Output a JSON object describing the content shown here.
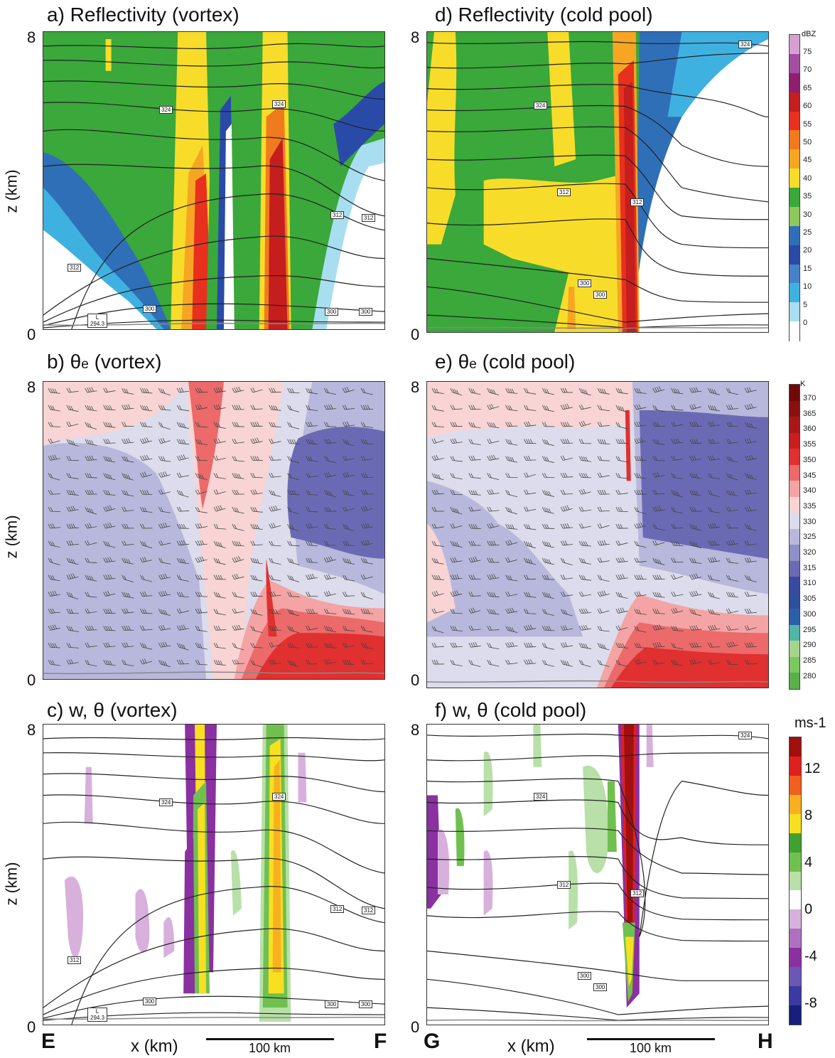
{
  "chart_data": [
    {
      "type": "heatmap",
      "panel": "a",
      "title": "a) Reflectivity (vortex)",
      "ylabel": "z (km)",
      "ylim": [
        0,
        8
      ],
      "y_tick_labels": [
        "0",
        "8"
      ],
      "contour_labels": [
        "324",
        "324",
        "312",
        "312",
        "312",
        "300",
        "300",
        "300"
      ],
      "low_label": [
        "L",
        "294.3"
      ]
    },
    {
      "type": "heatmap",
      "panel": "d",
      "title": "d) Reflectivity (cold pool)",
      "ylim": [
        0,
        8
      ],
      "y_tick_labels": [
        "0",
        "8"
      ],
      "contour_labels": [
        "324",
        "324",
        "312",
        "312",
        "300",
        "300"
      ],
      "colorbar": {
        "unit": "dBZ",
        "levels": [
          "75",
          "70",
          "65",
          "60",
          "55",
          "50",
          "45",
          "40",
          "35",
          "30",
          "25",
          "20",
          "15",
          "10",
          "5",
          "0"
        ]
      }
    },
    {
      "type": "heatmap",
      "panel": "b",
      "title_main": "b) θ",
      "title_sub": "e",
      "title_tail": " (vortex)",
      "ylabel": "z (km)",
      "ylim": [
        0,
        8
      ],
      "y_tick_labels": [
        "0",
        "8"
      ]
    },
    {
      "type": "heatmap",
      "panel": "e",
      "title_main": "e) θ",
      "title_sub": "e",
      "title_tail": " (cold pool)",
      "ylim": [
        0,
        8
      ],
      "y_tick_labels": [
        "0",
        "8"
      ],
      "colorbar": {
        "unit": "K",
        "levels": [
          "370",
          "365",
          "360",
          "355",
          "350",
          "345",
          "340",
          "335",
          "330",
          "325",
          "320",
          "315",
          "310",
          "305",
          "300",
          "295",
          "290",
          "285",
          "280"
        ]
      }
    },
    {
      "type": "heatmap",
      "panel": "c",
      "title": "c) w, θ (vortex)",
      "ylabel": "z (km)",
      "xlabel": "x (km)",
      "ylim": [
        0,
        8
      ],
      "y_tick_labels": [
        "0",
        "8"
      ],
      "contour_labels": [
        "324",
        "324",
        "312",
        "312",
        "312",
        "300",
        "300",
        "300"
      ],
      "low_label": [
        "L",
        "294.3"
      ],
      "scale_bar": "100 km",
      "endpoints": [
        "E",
        "F"
      ]
    },
    {
      "type": "heatmap",
      "panel": "f",
      "title": "f) w, θ (cold pool)",
      "xlabel": "x (km)",
      "ylim": [
        0,
        8
      ],
      "y_tick_labels": [
        "0",
        "8"
      ],
      "contour_labels": [
        "324",
        "324",
        "312",
        "312",
        "300",
        "300"
      ],
      "scale_bar": "100 km",
      "endpoints": [
        "G",
        "H"
      ],
      "colorbar": {
        "unit": "ms-1",
        "levels": [
          "12",
          "8",
          "4",
          "0",
          "-4",
          "-8"
        ]
      }
    }
  ],
  "colors": {
    "dbz": [
      "#ffffff",
      "#a8def0",
      "#3fb1e0",
      "#4682c8",
      "#2a4aa8",
      "#2f6fb8",
      "#8fc85a",
      "#3aa83a",
      "#f8dc2a",
      "#f6a623",
      "#f07a1e",
      "#e8301e",
      "#c41e1e",
      "#8e1e6e",
      "#a44ea0",
      "#d8a0d0"
    ],
    "theta_e": [
      "#5ab04a",
      "#7ac860",
      "#a6d48c",
      "#4fb6a8",
      "#2b5fa8",
      "#2e4e9e",
      "#3a4aa0",
      "#6a6ab4",
      "#9090c8",
      "#b8b8dc",
      "#dcdcec",
      "#f8d4d4",
      "#f4a4a4",
      "#ec6a6a",
      "#e03030",
      "#c81e1e",
      "#a81818",
      "#8a1010",
      "#700808"
    ],
    "w": [
      "#16207a",
      "#3a3aa0",
      "#6a58b4",
      "#8a30a0",
      "#b070c0",
      "#d8b0dc",
      "#ffffff",
      "#b8e0a8",
      "#70c050",
      "#40a030",
      "#f8e020",
      "#f8b020",
      "#f06020",
      "#e02020",
      "#a01010"
    ]
  }
}
